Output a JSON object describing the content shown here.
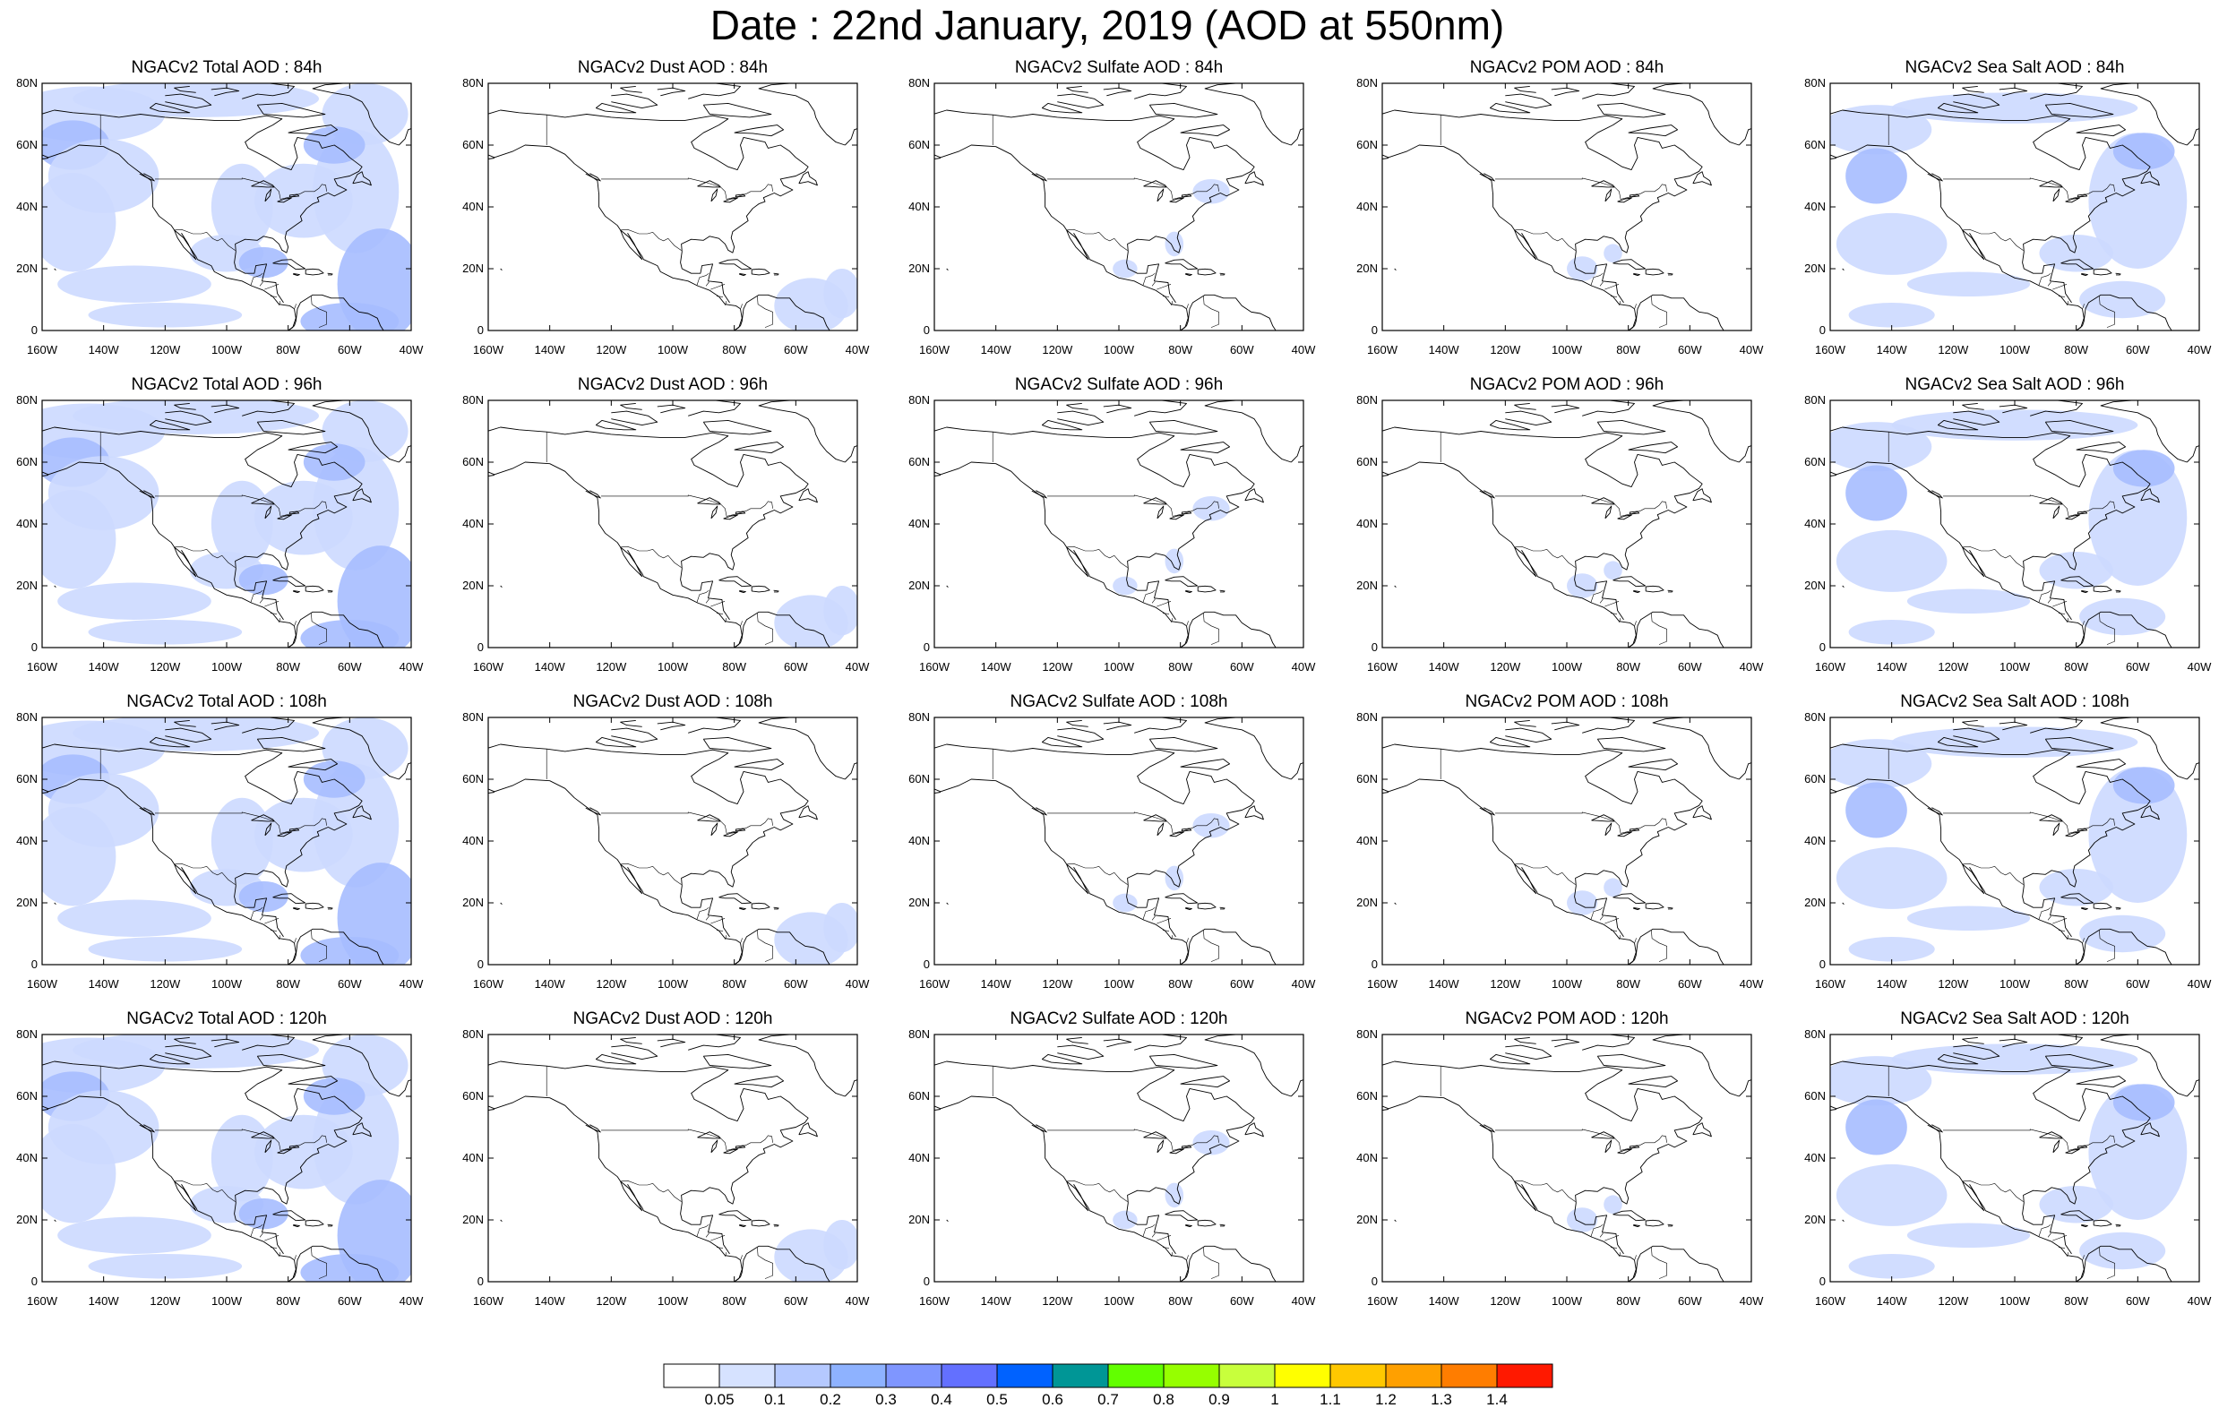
{
  "title": "Date : 22nd January, 2019 (AOD at 550nm)",
  "map": {
    "lat_labels": [
      "80N",
      "60N",
      "40N",
      "20N",
      "0"
    ],
    "lon_labels": [
      "160W",
      "140W",
      "120W",
      "100W",
      "80W",
      "60W",
      "40W"
    ],
    "lon_range": [
      -160,
      -40
    ],
    "lat_range": [
      0,
      80
    ]
  },
  "colors": {
    "land_outline": "#000000",
    "aod_low": "#ccd9ff",
    "aod_mid": "#a6bcff",
    "aod_high": "#7f9bff",
    "aod_peak": "#4d6bff"
  },
  "rows": [
    {
      "forecast_hour": "84h",
      "panels": [
        {
          "title": "NGACv2 Total AOD : 84h",
          "species": "total"
        },
        {
          "title": "NGACv2 Dust AOD : 84h",
          "species": "dust"
        },
        {
          "title": "NGACv2 Sulfate AOD : 84h",
          "species": "sulfate"
        },
        {
          "title": "NGACv2 POM AOD : 84h",
          "species": "pom"
        },
        {
          "title": "NGACv2 Sea Salt AOD : 84h",
          "species": "seasalt"
        }
      ]
    },
    {
      "forecast_hour": "96h",
      "panels": [
        {
          "title": "NGACv2 Total AOD : 96h",
          "species": "total"
        },
        {
          "title": "NGACv2 Dust AOD : 96h",
          "species": "dust"
        },
        {
          "title": "NGACv2 Sulfate AOD : 96h",
          "species": "sulfate"
        },
        {
          "title": "NGACv2 POM AOD : 96h",
          "species": "pom"
        },
        {
          "title": "NGACv2 Sea Salt AOD : 96h",
          "species": "seasalt"
        }
      ]
    },
    {
      "forecast_hour": "108h",
      "panels": [
        {
          "title": "NGACv2 Total AOD : 108h",
          "species": "total"
        },
        {
          "title": "NGACv2 Dust AOD : 108h",
          "species": "dust"
        },
        {
          "title": "NGACv2 Sulfate AOD : 108h",
          "species": "sulfate"
        },
        {
          "title": "NGACv2 POM AOD : 108h",
          "species": "pom"
        },
        {
          "title": "NGACv2 Sea Salt AOD : 108h",
          "species": "seasalt"
        }
      ]
    },
    {
      "forecast_hour": "120h",
      "panels": [
        {
          "title": "NGACv2 Total AOD : 120h",
          "species": "total"
        },
        {
          "title": "NGACv2 Dust AOD : 120h",
          "species": "dust"
        },
        {
          "title": "NGACv2 Sulfate AOD : 120h",
          "species": "sulfate"
        },
        {
          "title": "NGACv2 POM AOD : 120h",
          "species": "pom"
        },
        {
          "title": "NGACv2 Sea Salt  AOD : 120h",
          "species": "seasalt"
        }
      ]
    }
  ],
  "colorbar": {
    "colors": [
      "#ffffff",
      "#d6e2ff",
      "#b5c9ff",
      "#8eb2ff",
      "#7f96ff",
      "#6370ff",
      "#0062ff",
      "#009696",
      "#62ff00",
      "#96ff00",
      "#c8ff3c",
      "#ffff00",
      "#ffc800",
      "#ffa000",
      "#ff7d00",
      "#ff1900"
    ],
    "labels": [
      "0.05",
      "0.1",
      "0.2",
      "0.3",
      "0.4",
      "0.5",
      "0.6",
      "0.7",
      "0.8",
      "0.9",
      "1",
      "1.1",
      "1.2",
      "1.3",
      "1.4"
    ]
  }
}
